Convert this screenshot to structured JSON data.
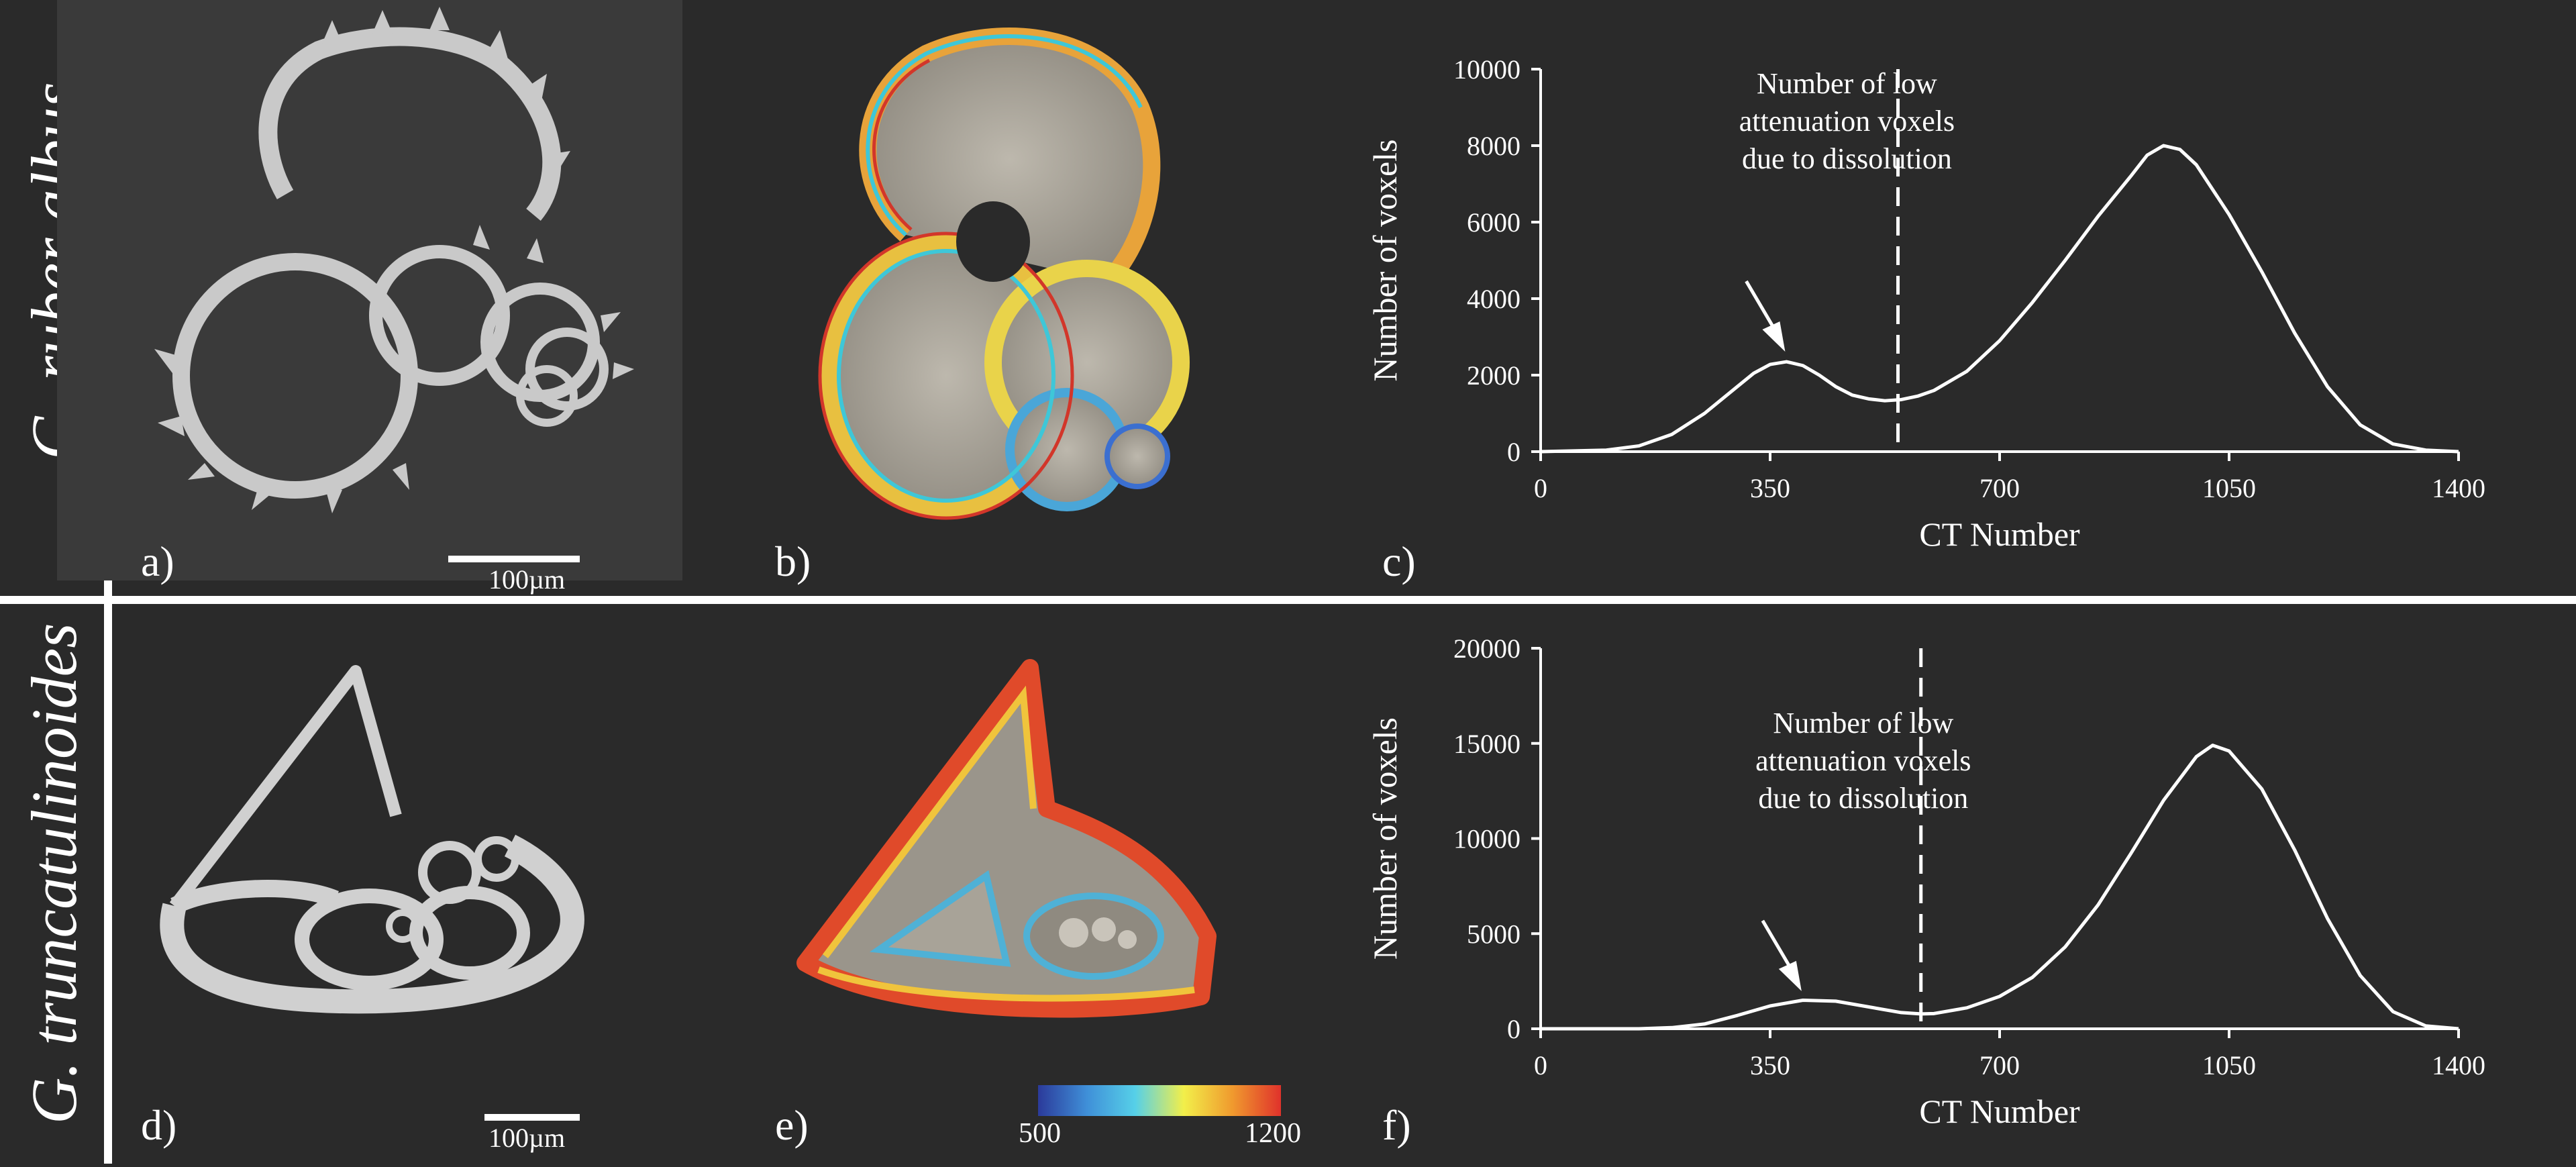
{
  "rows": [
    {
      "label": "G. ruber albus"
    },
    {
      "label": "G. truncatulinoides"
    }
  ],
  "panels": {
    "a": "a)",
    "b": "b)",
    "c": "c)",
    "d": "d)",
    "e": "e)",
    "f": "f)"
  },
  "scalebars": {
    "top": "100µm",
    "bottom": "100µm"
  },
  "colorbar": {
    "min": "500",
    "max": "1200",
    "colors": [
      "#2b3a9a",
      "#3f8fd8",
      "#56d0e8",
      "#f2ef4a",
      "#f09a2e",
      "#e0322b"
    ]
  },
  "colors": {
    "background": "#2a2a2a",
    "foreground": "#ffffff"
  },
  "chart_data": [
    {
      "type": "line",
      "panel": "c)",
      "xlabel": "CT Number",
      "ylabel": "Number of voxels",
      "xlim": [
        0,
        1400
      ],
      "ylim": [
        0,
        10000
      ],
      "xticks": [
        0,
        350,
        700,
        1050,
        1400
      ],
      "yticks": [
        0,
        2000,
        4000,
        6000,
        8000,
        10000
      ],
      "threshold_x": 545,
      "annotation": {
        "lines": [
          "Number of low",
          "attenuation voxels",
          "due to dissolution"
        ],
        "arrow_to": [
          375,
          2350
        ]
      },
      "x": [
        0,
        100,
        150,
        200,
        250,
        300,
        325,
        350,
        375,
        400,
        425,
        450,
        475,
        500,
        525,
        550,
        575,
        600,
        650,
        700,
        750,
        800,
        850,
        900,
        925,
        950,
        975,
        1000,
        1050,
        1100,
        1150,
        1200,
        1250,
        1300,
        1350,
        1400
      ],
      "y": [
        0,
        40,
        150,
        450,
        1000,
        1700,
        2050,
        2280,
        2350,
        2250,
        2000,
        1700,
        1480,
        1380,
        1330,
        1360,
        1450,
        1600,
        2100,
        2900,
        3900,
        5000,
        6150,
        7200,
        7750,
        8000,
        7900,
        7500,
        6200,
        4700,
        3100,
        1700,
        700,
        200,
        40,
        0
      ]
    },
    {
      "type": "line",
      "panel": "f)",
      "xlabel": "CT Number",
      "ylabel": "Number of voxels",
      "xlim": [
        0,
        1400
      ],
      "ylim": [
        0,
        20000
      ],
      "xticks": [
        0,
        350,
        700,
        1050,
        1400
      ],
      "yticks": [
        0,
        5000,
        10000,
        15000,
        20000
      ],
      "threshold_x": 580,
      "annotation": {
        "lines": [
          "Number of low",
          "attenuation voxels",
          "due to dissolution"
        ],
        "arrow_to": [
          400,
          1450
        ]
      },
      "x": [
        0,
        150,
        200,
        250,
        300,
        350,
        400,
        450,
        500,
        550,
        580,
        600,
        650,
        700,
        750,
        800,
        850,
        900,
        950,
        1000,
        1025,
        1050,
        1100,
        1150,
        1200,
        1250,
        1300,
        1350,
        1400
      ],
      "y": [
        0,
        0,
        60,
        250,
        700,
        1200,
        1500,
        1450,
        1150,
        850,
        780,
        800,
        1100,
        1700,
        2700,
        4300,
        6500,
        9200,
        12000,
        14300,
        14900,
        14600,
        12600,
        9400,
        5800,
        2800,
        900,
        150,
        0
      ]
    }
  ]
}
